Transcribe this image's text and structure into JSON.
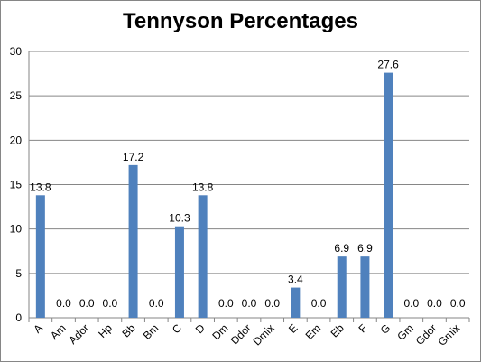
{
  "chart_data": {
    "type": "bar",
    "title": "Tennyson Percentages",
    "xlabel": "",
    "ylabel": "",
    "categories": [
      "A",
      "Am",
      "Ador",
      "Hp",
      "Bb",
      "Bm",
      "C",
      "D",
      "Dm",
      "Ddor",
      "Dmix",
      "E",
      "Em",
      "Eb",
      "F",
      "G",
      "Gm",
      "Gdor",
      "Gmix"
    ],
    "values": [
      13.8,
      0.0,
      0.0,
      0.0,
      17.2,
      0.0,
      10.3,
      13.8,
      0.0,
      0.0,
      0.0,
      3.4,
      0.0,
      6.9,
      6.9,
      27.6,
      0.0,
      0.0,
      0.0
    ],
    "data_labels": [
      "13.8",
      "0.0",
      "0.0",
      "0.0",
      "17.2",
      "0.0",
      "10.3",
      "13.8",
      "0.0",
      "0.0",
      "0.0",
      "3.4",
      "0.0",
      "6.9",
      "6.9",
      "27.6",
      "0.0",
      "0.0",
      "0.0"
    ],
    "ylim": [
      0,
      30
    ],
    "yticks": [
      0,
      5,
      10,
      15,
      20,
      25,
      30
    ],
    "grid": true,
    "legend": "none",
    "bar_color": "#4f81bd",
    "grid_color": "#868686"
  }
}
